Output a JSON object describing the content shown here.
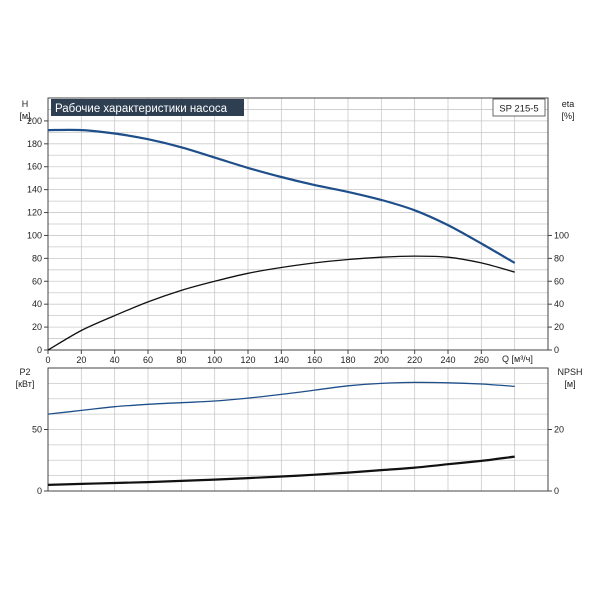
{
  "chart_data": [
    {
      "type": "line",
      "title": "Рабочие характеристики насоса",
      "model": "SP 215-5",
      "xlabel": "Q [м³/ч]",
      "xlim": [
        0,
        300
      ],
      "x_ticks": [
        0,
        20,
        40,
        60,
        80,
        100,
        120,
        140,
        160,
        180,
        200,
        220,
        240,
        260
      ],
      "ylabel_left": [
        "H",
        "[м]"
      ],
      "ylim_left": [
        0,
        220
      ],
      "y_ticks_left": [
        0,
        20,
        40,
        60,
        80,
        100,
        120,
        140,
        160,
        180,
        200
      ],
      "ylabel_right": [
        "eta",
        "[%]"
      ],
      "ylim_right": [
        0,
        220
      ],
      "y_ticks_right": [
        0,
        20,
        40,
        60,
        80,
        100
      ],
      "grid": true,
      "series": [
        {
          "axis": "left",
          "color": "#1f4f8a",
          "stroke": 2.2,
          "x": [
            0,
            20,
            40,
            60,
            80,
            100,
            120,
            140,
            160,
            180,
            200,
            220,
            240,
            260,
            280
          ],
          "y": [
            192,
            192,
            189,
            184,
            177,
            168,
            159,
            151,
            144,
            138,
            131,
            122,
            109,
            93,
            76
          ]
        },
        {
          "axis": "right",
          "color": "#111111",
          "stroke": 1.3,
          "x": [
            0,
            20,
            40,
            60,
            80,
            100,
            120,
            140,
            160,
            180,
            200,
            220,
            240,
            260,
            280
          ],
          "y": [
            0,
            17,
            30,
            42,
            52,
            60,
            67,
            72,
            76,
            79,
            81,
            82,
            81,
            76,
            68
          ]
        }
      ]
    },
    {
      "type": "line",
      "xlim": [
        0,
        300
      ],
      "ylabel_left": [
        "P2",
        "[кВт]"
      ],
      "ylim_left": [
        0,
        100
      ],
      "y_ticks_left": [
        0,
        50
      ],
      "ylabel_right": [
        "NPSH",
        "[м]"
      ],
      "ylim_right": [
        0,
        40
      ],
      "y_ticks_right": [
        0,
        20
      ],
      "grid": true,
      "series": [
        {
          "axis": "left",
          "color": "#1f4f8a",
          "stroke": 1.3,
          "x": [
            0,
            20,
            40,
            60,
            80,
            100,
            120,
            140,
            160,
            180,
            200,
            220,
            240,
            260,
            280
          ],
          "y": [
            62.5,
            65.5,
            68.5,
            70.5,
            71.8,
            73.2,
            75.5,
            78.5,
            82,
            85.5,
            87.5,
            88.3,
            88,
            87,
            85
          ]
        },
        {
          "axis": "right",
          "color": "#111111",
          "stroke": 2.2,
          "x": [
            0,
            20,
            40,
            60,
            80,
            100,
            120,
            140,
            160,
            180,
            200,
            220,
            240,
            260,
            280
          ],
          "y": [
            2.0,
            2.3,
            2.6,
            2.9,
            3.3,
            3.7,
            4.2,
            4.7,
            5.3,
            6.0,
            6.8,
            7.6,
            8.7,
            9.8,
            11.2
          ]
        }
      ]
    }
  ]
}
